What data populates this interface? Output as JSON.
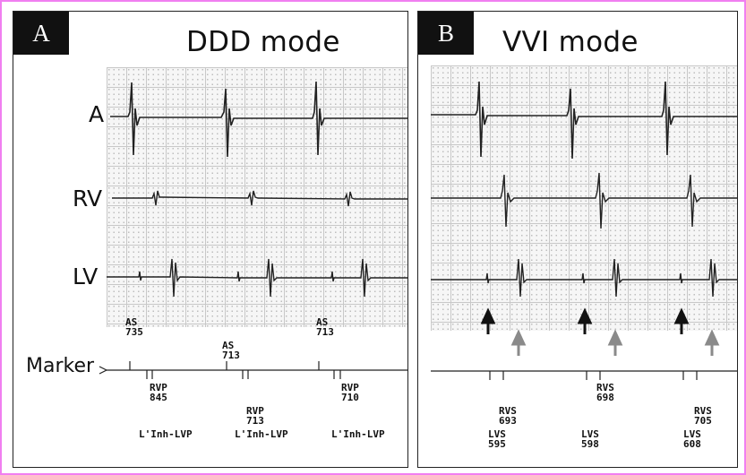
{
  "frame_color": "#f07ff0",
  "panel_a": {
    "letter": "A",
    "title": "DDD mode",
    "leads": [
      "A",
      "RV",
      "LV"
    ],
    "marker_label": "Marker",
    "markers": [
      {
        "name": "AS",
        "value": "735"
      },
      {
        "name": "AS",
        "value": "713"
      },
      {
        "name": "AS",
        "value": "713"
      },
      {
        "name": "RVP",
        "value": "845"
      },
      {
        "name": "RVP",
        "value": "713"
      },
      {
        "name": "RVP",
        "value": "710"
      },
      {
        "name": "L'Inh-LVP",
        "value": ""
      },
      {
        "name": "L'Inh-LVP",
        "value": ""
      },
      {
        "name": "L'Inh-LVP",
        "value": ""
      }
    ]
  },
  "panel_b": {
    "letter": "B",
    "title": "VVI mode",
    "markers": [
      {
        "name": "RVS",
        "value": "693"
      },
      {
        "name": "RVS",
        "value": "698"
      },
      {
        "name": "RVS",
        "value": "705"
      },
      {
        "name": "LVS",
        "value": "595"
      },
      {
        "name": "LVS",
        "value": "598"
      },
      {
        "name": "LVS",
        "value": "608"
      }
    ],
    "arrow_colors": {
      "black": "#111111",
      "gray": "#8a8a8a"
    }
  }
}
